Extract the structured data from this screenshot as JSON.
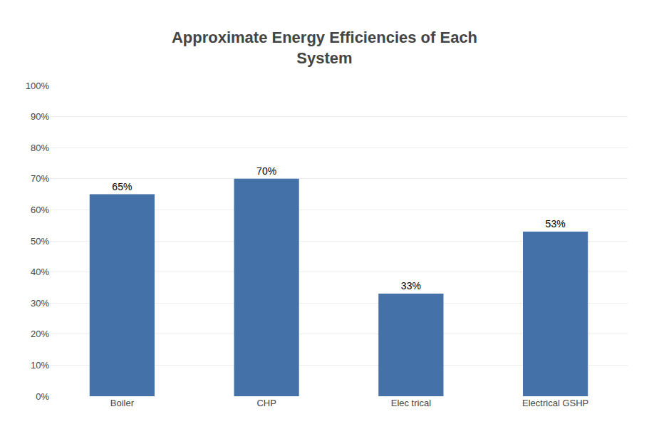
{
  "chart_data": {
    "type": "bar",
    "title": "Approximate Energy Efficiencies of Each\nSystem",
    "categories": [
      "Boiler",
      "CHP",
      "Elec trical",
      "Electrical GSHP"
    ],
    "values": [
      0.65,
      0.7,
      0.33,
      0.53
    ],
    "value_labels": [
      "65%",
      "70%",
      "33%",
      "53%"
    ],
    "data_labels": true,
    "color": "#4472a8",
    "ylim": [
      0,
      1.0
    ],
    "yticks": [
      {
        "value": 0.0,
        "label": "0%"
      },
      {
        "value": 0.1,
        "label": "10%"
      },
      {
        "value": 0.2,
        "label": "20%"
      },
      {
        "value": 0.3,
        "label": "30%"
      },
      {
        "value": 0.4,
        "label": "40%"
      },
      {
        "value": 0.5,
        "label": "50%"
      },
      {
        "value": 0.6,
        "label": "60%"
      },
      {
        "value": 0.7,
        "label": "70%"
      },
      {
        "value": 0.8,
        "label": "80%"
      },
      {
        "value": 0.9,
        "label": "90%"
      },
      {
        "value": 1.0,
        "label": "100%"
      }
    ],
    "grid": true
  }
}
